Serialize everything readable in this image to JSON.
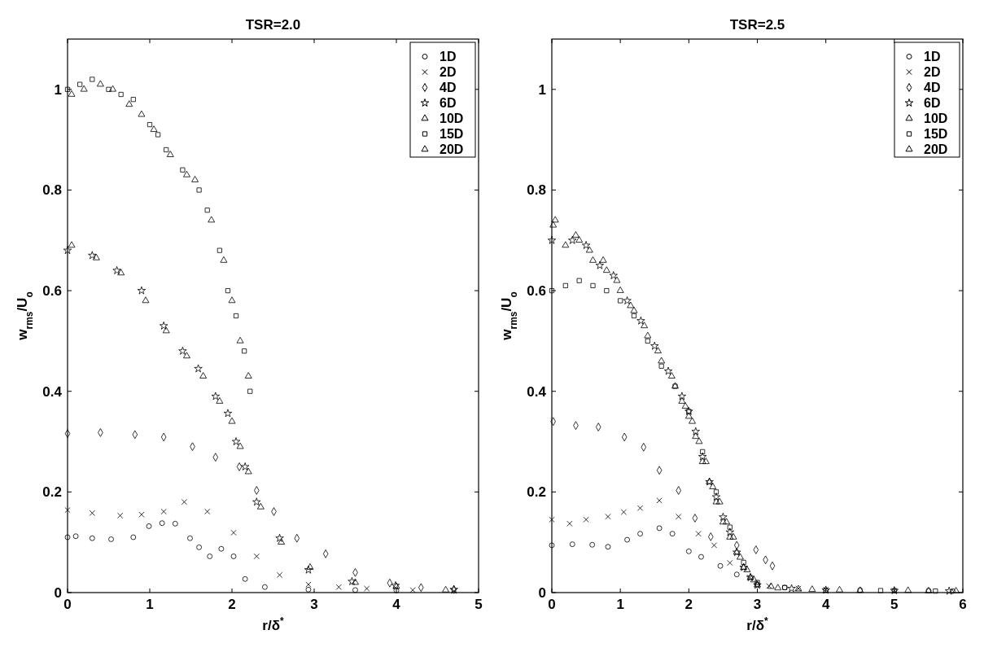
{
  "chart_data": [
    {
      "type": "scatter",
      "title": "TSR=2.0",
      "xlabel": "r/δ$^{*}$",
      "ylabel": "w$_{rms}$/U$_{o}$",
      "xlim": [
        0,
        5
      ],
      "xticks": [
        0,
        1,
        2,
        3,
        4,
        5
      ],
      "ylim": [
        0,
        1.1
      ],
      "yticks": [
        0,
        0.2,
        0.4,
        0.6,
        0.8,
        1
      ],
      "grid": false,
      "legend": "top right",
      "series": [
        {
          "name": "1D",
          "color": "#000000",
          "marker": "circle",
          "x": [
            0,
            0.1,
            0.3,
            0.53,
            0.8,
            0.99,
            1.15,
            1.31,
            1.49,
            1.6,
            1.73,
            1.87,
            2.02,
            2.16,
            2.4,
            2.93,
            3.5,
            4.0
          ],
          "values": [
            0.11,
            0.112,
            0.108,
            0.106,
            0.11,
            0.132,
            0.138,
            0.137,
            0.108,
            0.09,
            0.072,
            0.087,
            0.072,
            0.027,
            0.011,
            0.006,
            0.005,
            0.004
          ]
        },
        {
          "name": "2D",
          "color": "#000000",
          "marker": "cross",
          "x": [
            0,
            0.3,
            0.64,
            0.9,
            1.17,
            1.42,
            1.7,
            2.02,
            2.3,
            2.58,
            2.93,
            3.3,
            3.64,
            4.2,
            4.7
          ],
          "values": [
            0.164,
            0.158,
            0.153,
            0.155,
            0.161,
            0.18,
            0.161,
            0.119,
            0.072,
            0.035,
            0.016,
            0.011,
            0.008,
            0.005,
            0.003
          ]
        },
        {
          "name": "4D",
          "color": "#000000",
          "marker": "diamond",
          "x": [
            0,
            0.4,
            0.82,
            1.17,
            1.52,
            1.8,
            2.09,
            2.3,
            2.51,
            2.79,
            3.14,
            3.5,
            3.92,
            4.3,
            4.7
          ],
          "values": [
            0.316,
            0.318,
            0.314,
            0.309,
            0.29,
            0.269,
            0.25,
            0.203,
            0.161,
            0.108,
            0.077,
            0.04,
            0.019,
            0.01,
            0.006
          ]
        },
        {
          "name": "6D",
          "color": "#000000",
          "marker": "star",
          "x": [
            0,
            0.3,
            0.6,
            0.9,
            1.17,
            1.4,
            1.59,
            1.8,
            1.95,
            2.05,
            2.16,
            2.3,
            2.58,
            2.93,
            3.46,
            3.99,
            4.7
          ],
          "values": [
            0.68,
            0.67,
            0.64,
            0.6,
            0.53,
            0.48,
            0.445,
            0.39,
            0.356,
            0.3,
            0.25,
            0.18,
            0.108,
            0.045,
            0.022,
            0.014,
            0.006
          ]
        },
        {
          "name": "10D",
          "color": "#000000",
          "marker": "triangle",
          "x": [
            0.05,
            0.35,
            0.65,
            0.95,
            1.2,
            1.45,
            1.65,
            1.85,
            2.0,
            2.1,
            2.2,
            2.35,
            2.6,
            2.95,
            3.5,
            4.0,
            4.6
          ],
          "values": [
            0.69,
            0.665,
            0.635,
            0.58,
            0.52,
            0.47,
            0.43,
            0.38,
            0.34,
            0.29,
            0.24,
            0.17,
            0.1,
            0.05,
            0.02,
            0.012,
            0.005
          ]
        },
        {
          "name": "15D",
          "color": "#000000",
          "marker": "square",
          "x": [
            0,
            0.15,
            0.3,
            0.5,
            0.65,
            0.8,
            1.0,
            1.1,
            1.2,
            1.4,
            1.6,
            1.7,
            1.85,
            1.95,
            2.05,
            2.15,
            2.22
          ],
          "values": [
            1.0,
            1.01,
            1.02,
            1.0,
            0.99,
            0.98,
            0.93,
            0.91,
            0.88,
            0.84,
            0.8,
            0.76,
            0.68,
            0.6,
            0.55,
            0.48,
            0.4
          ]
        },
        {
          "name": "20D",
          "color": "#000000",
          "marker": "triangle",
          "x": [
            0.05,
            0.2,
            0.4,
            0.55,
            0.75,
            0.9,
            1.05,
            1.25,
            1.45,
            1.55,
            1.75,
            1.9,
            2.0,
            2.1,
            2.2
          ],
          "values": [
            0.99,
            1.0,
            1.01,
            1.0,
            0.97,
            0.95,
            0.92,
            0.87,
            0.83,
            0.82,
            0.74,
            0.66,
            0.58,
            0.5,
            0.43
          ]
        }
      ]
    },
    {
      "type": "scatter",
      "title": "TSR=2.5",
      "xlabel": "r/δ$^{*}$",
      "ylabel": "w$_{rms}$/U$_{o}$",
      "xlim": [
        0,
        6
      ],
      "xticks": [
        0,
        1,
        2,
        3,
        4,
        5,
        6
      ],
      "ylim": [
        0,
        1.1
      ],
      "yticks": [
        0,
        0.2,
        0.4,
        0.6,
        0.8,
        1
      ],
      "grid": false,
      "legend": "top right",
      "series": [
        {
          "name": "1D",
          "color": "#000000",
          "marker": "circle",
          "x": [
            0,
            0.3,
            0.59,
            0.82,
            1.1,
            1.29,
            1.57,
            1.76,
            2.0,
            2.18,
            2.46,
            2.7,
            3.0,
            3.4,
            4.0,
            4.5,
            5.0,
            5.5,
            5.85
          ],
          "values": [
            0.094,
            0.096,
            0.095,
            0.091,
            0.105,
            0.117,
            0.128,
            0.117,
            0.082,
            0.071,
            0.053,
            0.036,
            0.016,
            0.01,
            0.005,
            0.005,
            0.004,
            0.004,
            0.003
          ]
        },
        {
          "name": "2D",
          "color": "#000000",
          "marker": "cross",
          "x": [
            0,
            0.26,
            0.5,
            0.82,
            1.05,
            1.29,
            1.57,
            1.85,
            2.14,
            2.37,
            2.6,
            2.89,
            3.17,
            3.6,
            4.0,
            5.0
          ],
          "values": [
            0.145,
            0.137,
            0.145,
            0.151,
            0.16,
            0.168,
            0.183,
            0.151,
            0.117,
            0.094,
            0.059,
            0.03,
            0.013,
            0.008,
            0.006,
            0.004
          ]
        },
        {
          "name": "4D",
          "color": "#000000",
          "marker": "diamond",
          "x": [
            0.02,
            0.35,
            0.68,
            1.06,
            1.34,
            1.57,
            1.85,
            2.09,
            2.32,
            2.7,
            2.98,
            3.12,
            3.22
          ],
          "values": [
            0.34,
            0.332,
            0.329,
            0.309,
            0.289,
            0.243,
            0.203,
            0.148,
            0.111,
            0.094,
            0.085,
            0.065,
            0.053
          ]
        },
        {
          "name": "6D",
          "color": "#000000",
          "marker": "star",
          "x": [
            0,
            0.3,
            0.5,
            0.7,
            0.9,
            1.1,
            1.3,
            1.5,
            1.7,
            1.9,
            2.0,
            2.1,
            2.2,
            2.3,
            2.4,
            2.5,
            2.6,
            2.7,
            2.8,
            2.9,
            3.0,
            3.5,
            4.0,
            5.0,
            5.8
          ],
          "values": [
            0.7,
            0.7,
            0.69,
            0.65,
            0.63,
            0.58,
            0.54,
            0.49,
            0.44,
            0.39,
            0.36,
            0.32,
            0.27,
            0.22,
            0.19,
            0.15,
            0.12,
            0.08,
            0.05,
            0.03,
            0.015,
            0.008,
            0.005,
            0.004,
            0.003
          ]
        },
        {
          "name": "10D",
          "color": "#000000",
          "marker": "triangle",
          "x": [
            0.05,
            0.35,
            0.55,
            0.75,
            0.95,
            1.15,
            1.35,
            1.55,
            1.75,
            1.95,
            2.05,
            2.15,
            2.25,
            2.35,
            2.45,
            2.55,
            2.65,
            2.75,
            2.85,
            2.95,
            3.2,
            3.6,
            4.2,
            5.2,
            5.9
          ],
          "values": [
            0.74,
            0.71,
            0.68,
            0.66,
            0.62,
            0.57,
            0.53,
            0.48,
            0.43,
            0.37,
            0.34,
            0.3,
            0.26,
            0.21,
            0.18,
            0.14,
            0.11,
            0.07,
            0.045,
            0.025,
            0.012,
            0.007,
            0.005,
            0.004,
            0.003
          ]
        },
        {
          "name": "15D",
          "color": "#000000",
          "marker": "square",
          "x": [
            0,
            0.2,
            0.4,
            0.6,
            0.8,
            1.0,
            1.2,
            1.4,
            1.6,
            1.8,
            2.0,
            2.2,
            2.4,
            2.6,
            2.8,
            3.0,
            3.4,
            4.8,
            5.6
          ],
          "values": [
            0.6,
            0.61,
            0.62,
            0.61,
            0.6,
            0.58,
            0.55,
            0.5,
            0.45,
            0.41,
            0.36,
            0.28,
            0.2,
            0.13,
            0.06,
            0.02,
            0.01,
            0.004,
            0.003
          ]
        },
        {
          "name": "20D",
          "color": "#000000",
          "marker": "triangle",
          "x": [
            0.02,
            0.2,
            0.4,
            0.6,
            0.8,
            1.0,
            1.2,
            1.4,
            1.6,
            1.8,
            1.9,
            2.0,
            2.1,
            2.2,
            2.3,
            2.4,
            2.5,
            2.6,
            2.7,
            2.8,
            2.9,
            3.0,
            3.3,
            3.8,
            4.5,
            5.5
          ],
          "values": [
            0.73,
            0.69,
            0.7,
            0.66,
            0.64,
            0.6,
            0.56,
            0.51,
            0.46,
            0.41,
            0.38,
            0.35,
            0.31,
            0.26,
            0.22,
            0.18,
            0.14,
            0.11,
            0.08,
            0.05,
            0.03,
            0.015,
            0.009,
            0.006,
            0.004,
            0.003
          ]
        }
      ]
    }
  ]
}
